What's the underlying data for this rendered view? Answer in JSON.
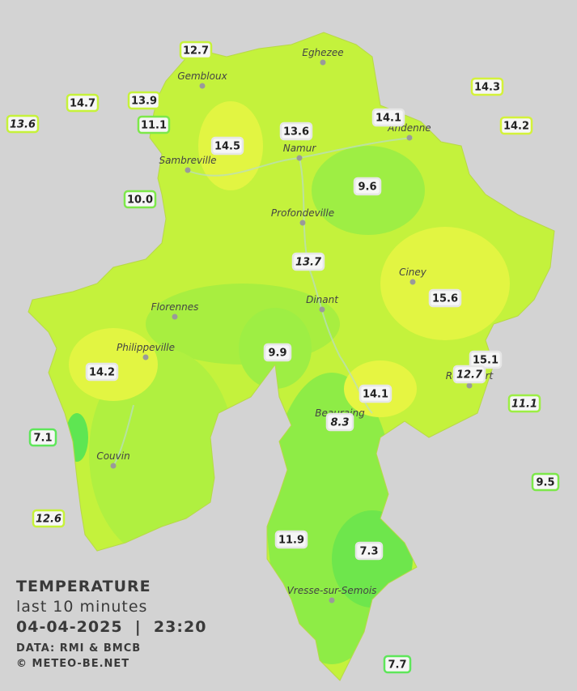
{
  "title": {
    "line1": "TEMPERATURE",
    "line2": "last 10 minutes",
    "line3": "04-04-2025  |  23:20",
    "source": "DATA: RMI & BMCB",
    "credit": "© METEO-BE.NET"
  },
  "cities": [
    "Eghezee",
    "Gembloux",
    "Sambreville",
    "Namur",
    "Andenne",
    "Profondeville",
    "Ciney",
    "Dinant",
    "Florennes",
    "Philippeville",
    "Couvin",
    "Vresse-sur-Semois",
    "Beauraing",
    "Rochefort"
  ],
  "stations": [
    {
      "label": "12.7",
      "border": "#c6f23a"
    },
    {
      "label": "13.9",
      "border": "#c6f23a"
    },
    {
      "label": "14.7",
      "border": "#c6f23a"
    },
    {
      "label": "13.6",
      "border": "#c6f23a",
      "italic": true
    },
    {
      "label": "11.1",
      "border": "#7de84a"
    },
    {
      "label": "14.5",
      "border": "#e6e6e6"
    },
    {
      "label": "13.6",
      "border": "#e6e6e6"
    },
    {
      "label": "14.1",
      "border": "#e6e6e6"
    },
    {
      "label": "14.3",
      "border": "#d4f23a"
    },
    {
      "label": "14.2",
      "border": "#d4f23a"
    },
    {
      "label": "10.0",
      "border": "#7de84a"
    },
    {
      "label": "9.6",
      "border": "#e6e6e6"
    },
    {
      "label": "13.7",
      "border": "#e6e6e6",
      "italic": true
    },
    {
      "label": "15.6",
      "border": "#e6e6e6"
    },
    {
      "label": "9.9",
      "border": "#e6e6e6"
    },
    {
      "label": "14.2",
      "border": "#e6e6e6"
    },
    {
      "label": "15.1",
      "border": "#e6e6e6"
    },
    {
      "label": "12.7",
      "border": "#e6e6e6",
      "italic": true
    },
    {
      "label": "11.1",
      "border": "#9cee44",
      "italic": true
    },
    {
      "label": "14.1",
      "border": "#e6e6e6"
    },
    {
      "label": "8.3",
      "border": "#e6e6e6",
      "italic": true
    },
    {
      "label": "7.1",
      "border": "#5ee65a"
    },
    {
      "label": "9.5",
      "border": "#7de84a"
    },
    {
      "label": "12.6",
      "border": "#c6f23a",
      "italic": true
    },
    {
      "label": "11.9",
      "border": "#e6e6e6"
    },
    {
      "label": "7.3",
      "border": "#e6e6e6"
    },
    {
      "label": "7.7",
      "border": "#5ee65a"
    }
  ]
}
